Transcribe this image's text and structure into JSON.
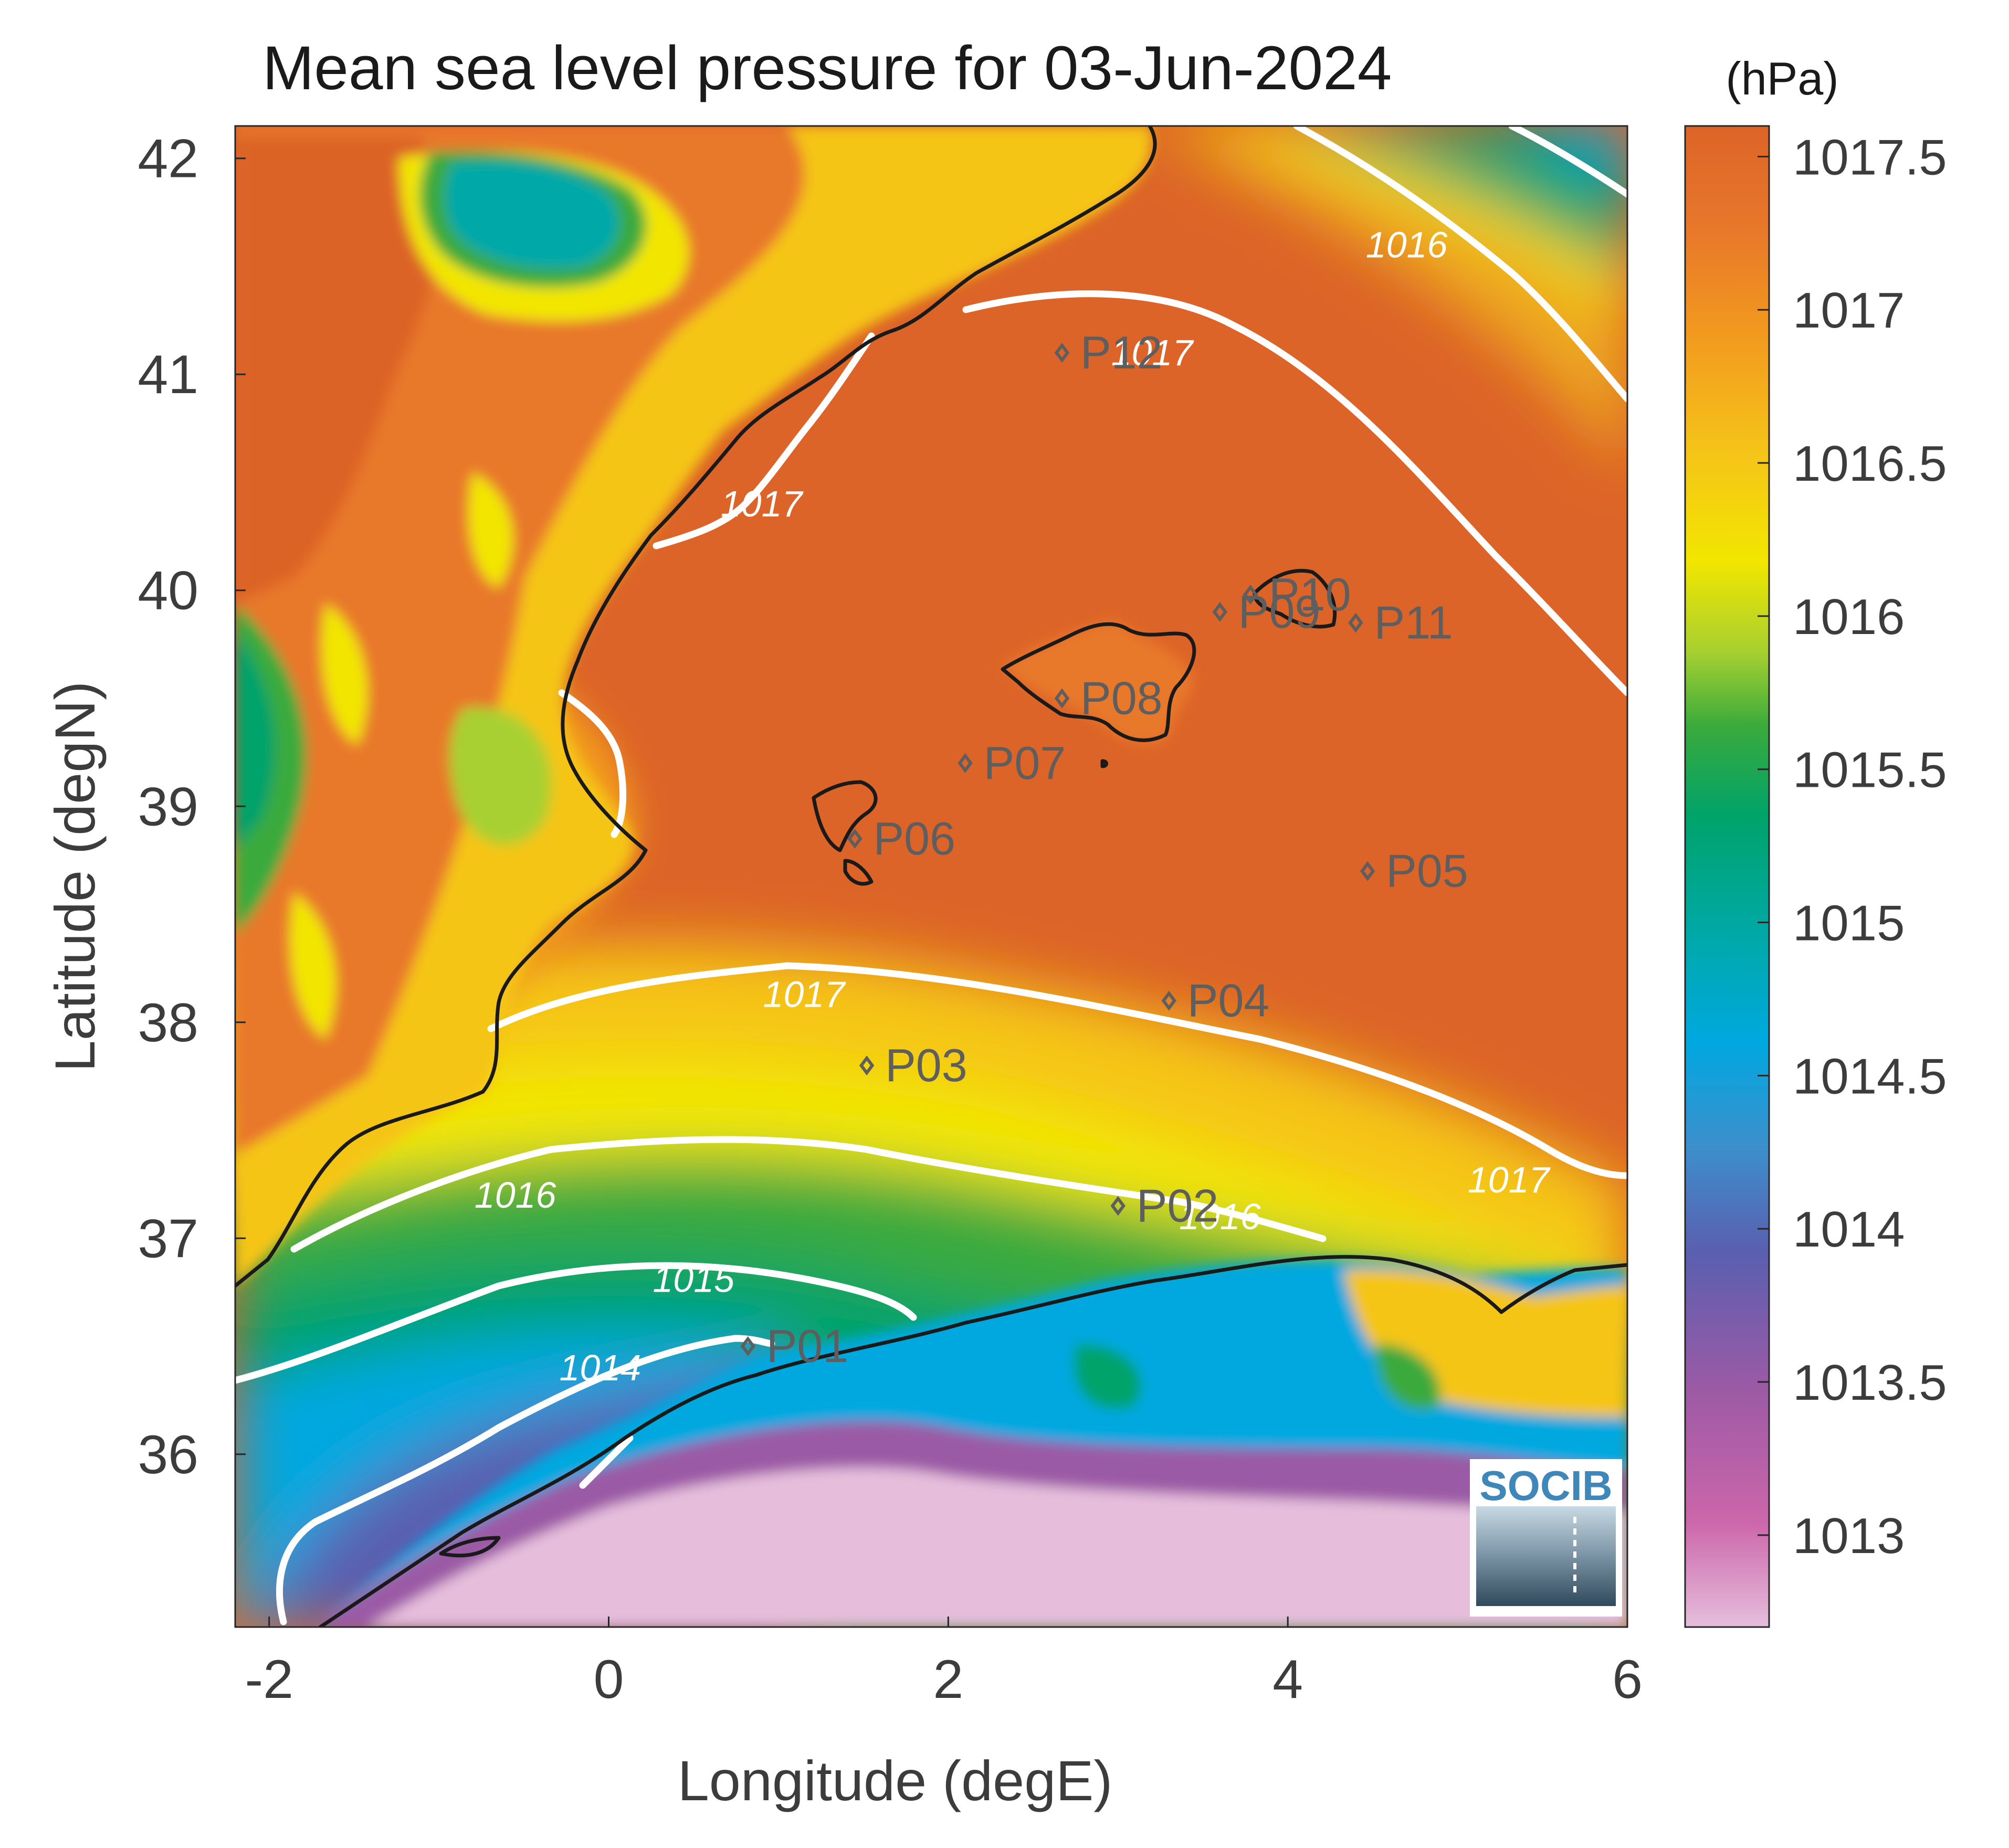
{
  "title": "Mean sea level pressure for 03-Jun-2024",
  "unit_label": "(hPa)",
  "xlabel": "Longitude (degE)",
  "ylabel": "Latitude (degN)",
  "xticks": [
    "-2",
    "0",
    "2",
    "4",
    "6"
  ],
  "yticks": [
    "42",
    "41",
    "40",
    "39",
    "38",
    "37",
    "36"
  ],
  "colorbar": {
    "ticks": [
      "1017.5",
      "1017",
      "1016.5",
      "1016",
      "1015.5",
      "1015",
      "1014.5",
      "1014",
      "1013.5",
      "1013"
    ],
    "range": [
      1012.7,
      1017.6
    ],
    "colors": [
      "#e6bedc",
      "#cc66aa",
      "#9b5aa5",
      "#5a5fb0",
      "#3d8fcc",
      "#00a8e0",
      "#00a9a8",
      "#00a36a",
      "#3aaa3c",
      "#a8d030",
      "#f2e600",
      "#f5c518",
      "#f29a1e",
      "#e8782a",
      "#dc6428"
    ]
  },
  "logo": "SOCIB",
  "chart_data": {
    "type": "heatmap",
    "title": "Mean sea level pressure for 03-Jun-2024",
    "xlabel": "Longitude (degE)",
    "ylabel": "Latitude (degN)",
    "xlim": [
      -2.2,
      6.0
    ],
    "ylim": [
      35.2,
      42.15
    ],
    "colorbar_unit": "(hPa)",
    "colorbar_range": [
      1012.7,
      1017.6
    ],
    "contour_labels": [
      {
        "text": "1016",
        "lon": 4.7,
        "lat": 41.6
      },
      {
        "text": "1017",
        "lon": 3.2,
        "lat": 41.1
      },
      {
        "text": "1017",
        "lon": 0.9,
        "lat": 40.4
      },
      {
        "text": "1017",
        "lon": 1.15,
        "lat": 38.13
      },
      {
        "text": "1017",
        "lon": 5.3,
        "lat": 37.27
      },
      {
        "text": "1016",
        "lon": -0.55,
        "lat": 37.2
      },
      {
        "text": "1016",
        "lon": 3.6,
        "lat": 37.1
      },
      {
        "text": "1015",
        "lon": 0.5,
        "lat": 36.81
      },
      {
        "text": "1014",
        "lon": -0.05,
        "lat": 36.4
      }
    ],
    "stations": [
      {
        "name": "P01",
        "lon": 0.82,
        "lat": 36.5
      },
      {
        "name": "P02",
        "lon": 3.0,
        "lat": 37.15
      },
      {
        "name": "P03",
        "lon": 1.52,
        "lat": 37.8
      },
      {
        "name": "P04",
        "lon": 3.3,
        "lat": 38.1
      },
      {
        "name": "P05",
        "lon": 4.47,
        "lat": 38.7
      },
      {
        "name": "P06",
        "lon": 1.45,
        "lat": 38.85
      },
      {
        "name": "P07",
        "lon": 2.1,
        "lat": 39.2
      },
      {
        "name": "P08",
        "lon": 2.67,
        "lat": 39.5
      },
      {
        "name": "P09",
        "lon": 3.6,
        "lat": 39.9
      },
      {
        "name": "P10",
        "lon": 3.78,
        "lat": 39.98
      },
      {
        "name": "P11",
        "lon": 4.4,
        "lat": 39.85
      },
      {
        "name": "P12",
        "lon": 2.67,
        "lat": 41.1
      }
    ]
  }
}
